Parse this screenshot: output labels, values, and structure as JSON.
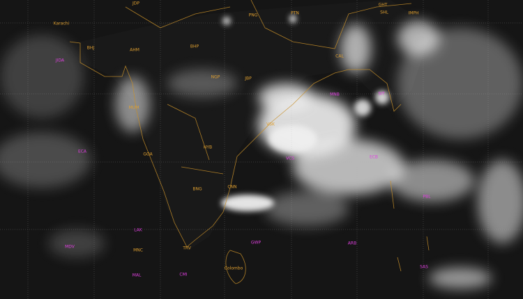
{
  "colors": {
    "land_border": "#c8902a",
    "grid": "#b0b0b0",
    "city_label": "#e0a030",
    "station_label": "#e040e0",
    "ocean": "#151515",
    "cloud": "#f2f2f2"
  },
  "labels": [
    {
      "text": "JDP",
      "type": "city"
    },
    {
      "text": "Karachi",
      "type": "city"
    },
    {
      "text": "BHJ",
      "type": "city"
    },
    {
      "text": "JIDA",
      "type": "station"
    },
    {
      "text": "AHM",
      "type": "city"
    },
    {
      "text": "BHP",
      "type": "city"
    },
    {
      "text": "PNG",
      "type": "city"
    },
    {
      "text": "PTN",
      "type": "city"
    },
    {
      "text": "GHT",
      "type": "city"
    },
    {
      "text": "SHL",
      "type": "city"
    },
    {
      "text": "IMPH",
      "type": "city"
    },
    {
      "text": "CAL",
      "type": "city"
    },
    {
      "text": "NGP",
      "type": "city"
    },
    {
      "text": "JBP",
      "type": "city"
    },
    {
      "text": "MUM",
      "type": "city"
    },
    {
      "text": "HYB",
      "type": "city"
    },
    {
      "text": "VSK",
      "type": "city"
    },
    {
      "text": "ECA",
      "type": "station"
    },
    {
      "text": "GOA",
      "type": "city"
    },
    {
      "text": "BNG",
      "type": "city"
    },
    {
      "text": "CNN",
      "type": "city"
    },
    {
      "text": "MNB",
      "type": "station"
    },
    {
      "text": "SIT",
      "type": "station"
    },
    {
      "text": "VCS",
      "type": "station"
    },
    {
      "text": "ECB",
      "type": "station"
    },
    {
      "text": "PBL",
      "type": "station"
    },
    {
      "text": "LAK",
      "type": "station"
    },
    {
      "text": "MNC",
      "type": "city"
    },
    {
      "text": "MAL",
      "type": "station"
    },
    {
      "text": "MDV",
      "type": "station"
    },
    {
      "text": "TRV",
      "type": "city"
    },
    {
      "text": "Colombo",
      "type": "city"
    },
    {
      "text": "CMI",
      "type": "station"
    },
    {
      "text": "GWP",
      "type": "station"
    },
    {
      "text": "ARB",
      "type": "station"
    },
    {
      "text": "SAS",
      "type": "station"
    }
  ]
}
